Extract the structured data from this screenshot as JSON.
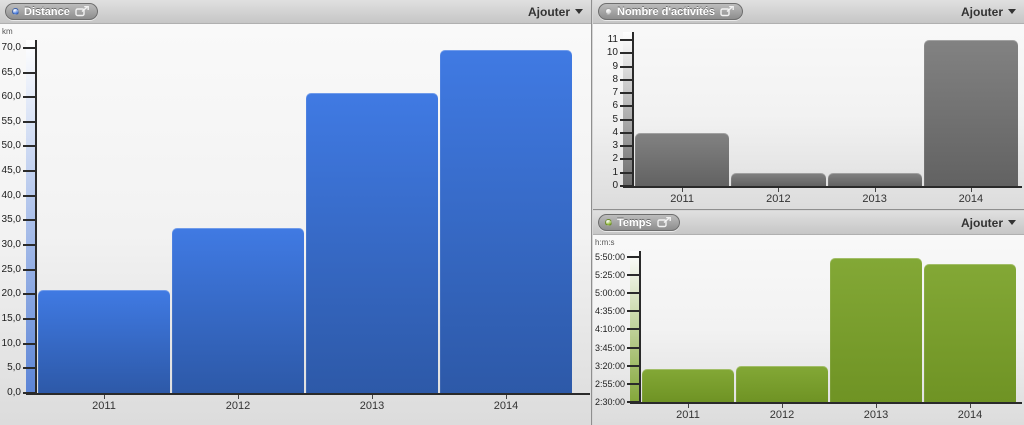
{
  "ui": {
    "add_label": "Ajouter"
  },
  "chart_data": [
    {
      "type": "bar",
      "title": "Distance",
      "unit": "km",
      "categories": [
        "2011",
        "2012",
        "2013",
        "2014"
      ],
      "values": [
        20.9,
        33.5,
        60.8,
        69.6
      ],
      "ylim": [
        0,
        71.6
      ],
      "yticks": [
        {
          "v": 0,
          "label": "0,0"
        },
        {
          "v": 5,
          "label": "5,0"
        },
        {
          "v": 10,
          "label": "10,0"
        },
        {
          "v": 15,
          "label": "15,0"
        },
        {
          "v": 20,
          "label": "20,0"
        },
        {
          "v": 25,
          "label": "25,0"
        },
        {
          "v": 30,
          "label": "30,0"
        },
        {
          "v": 35,
          "label": "35,0"
        },
        {
          "v": 40,
          "label": "40,0"
        },
        {
          "v": 45,
          "label": "45,0"
        },
        {
          "v": 50,
          "label": "50,0"
        },
        {
          "v": 55,
          "label": "55,0"
        },
        {
          "v": 60,
          "label": "60,0"
        },
        {
          "v": 65,
          "label": "65,0"
        },
        {
          "v": 70,
          "label": "70,0"
        }
      ],
      "dot_color": "#4a7de0",
      "bar_color_top": "#407ae3",
      "bar_color_bottom": "#2d59a8",
      "strip_top": "#ffffff",
      "strip_bottom": "#5b84d6",
      "legend": "none",
      "grid": "off"
    },
    {
      "type": "bar",
      "title": "Nombre d'activités",
      "unit": "",
      "categories": [
        "2011",
        "2012",
        "2013",
        "2014"
      ],
      "values": [
        4,
        1,
        1,
        11
      ],
      "ylim": [
        0,
        11.6
      ],
      "yticks": [
        {
          "v": 0,
          "label": "0"
        },
        {
          "v": 1,
          "label": "1"
        },
        {
          "v": 2,
          "label": "2"
        },
        {
          "v": 3,
          "label": "3"
        },
        {
          "v": 4,
          "label": "4"
        },
        {
          "v": 5,
          "label": "5"
        },
        {
          "v": 6,
          "label": "6"
        },
        {
          "v": 7,
          "label": "7"
        },
        {
          "v": 8,
          "label": "8"
        },
        {
          "v": 9,
          "label": "9"
        },
        {
          "v": 10,
          "label": "10"
        },
        {
          "v": 11,
          "label": "11"
        }
      ],
      "dot_color": "#d4d4d4",
      "bar_color_top": "#828282",
      "bar_color_bottom": "#626262",
      "strip_top": "#ffffff",
      "strip_bottom": "#6b6b6b",
      "legend": "none",
      "grid": "off"
    },
    {
      "type": "bar",
      "title": "Temps",
      "unit": "h:m:s",
      "categories": [
        "2011",
        "2012",
        "2013",
        "2014"
      ],
      "values": [
        196,
        200,
        348,
        340
      ],
      "values_display": [
        "3:16:00",
        "3:20:00",
        "5:48:00",
        "5:40:00"
      ],
      "values_unit": "minutes",
      "ylim": [
        150,
        358
      ],
      "yticks": [
        {
          "v": 150,
          "label": "2:30:00"
        },
        {
          "v": 175,
          "label": "2:55:00"
        },
        {
          "v": 200,
          "label": "3:20:00"
        },
        {
          "v": 225,
          "label": "3:45:00"
        },
        {
          "v": 250,
          "label": "4:10:00"
        },
        {
          "v": 275,
          "label": "4:35:00"
        },
        {
          "v": 300,
          "label": "5:00:00"
        },
        {
          "v": 325,
          "label": "5:25:00"
        },
        {
          "v": 350,
          "label": "5:50:00"
        }
      ],
      "dot_color": "#8db832",
      "bar_color_top": "#83a836",
      "bar_color_bottom": "#6f9324",
      "strip_top": "#ffffff",
      "strip_bottom": "#84a73a",
      "legend": "none",
      "grid": "off"
    }
  ]
}
